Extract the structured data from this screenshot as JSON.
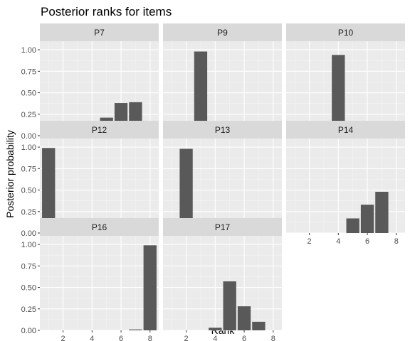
{
  "chart_data": {
    "type": "bar",
    "title": "Posterior ranks for items",
    "xlabel": "Rank",
    "ylabel": "Posterior probability",
    "ylim": [
      0,
      1.1
    ],
    "xlim": [
      0.4,
      8.6
    ],
    "x_ticks": [
      2,
      4,
      6,
      8
    ],
    "y_ticks": [
      0,
      0.25,
      0.5,
      0.75,
      1
    ],
    "y_tick_labels": [
      "0.00",
      "0.25",
      "0.50",
      "0.75",
      "1.00"
    ],
    "x_tick_labels": [
      "2",
      "4",
      "6",
      "8"
    ],
    "grid": true,
    "bar_color": "#595959",
    "panel_background": "#ebebeb",
    "strip_background": "#d9d9d9",
    "ranks": [
      1,
      2,
      3,
      4,
      5,
      6,
      7,
      8
    ],
    "panels": [
      {
        "name": "P7",
        "values": [
          0,
          0,
          0,
          0.01,
          0.21,
          0.38,
          0.39,
          0.01
        ]
      },
      {
        "name": "P9",
        "values": [
          0,
          0.01,
          0.98,
          0.02,
          0,
          0,
          0,
          0
        ]
      },
      {
        "name": "P10",
        "values": [
          0,
          0,
          0.02,
          0.94,
          0.04,
          0,
          0,
          0
        ]
      },
      {
        "name": "P12",
        "values": [
          0.99,
          0.01,
          0,
          0,
          0,
          0,
          0,
          0
        ]
      },
      {
        "name": "P13",
        "values": [
          0.01,
          0.98,
          0,
          0,
          0,
          0,
          0,
          0
        ]
      },
      {
        "name": "P14",
        "values": [
          0,
          0,
          0,
          0,
          0.17,
          0.33,
          0.48,
          0
        ]
      },
      {
        "name": "P16",
        "values": [
          0,
          0,
          0,
          0,
          0,
          0,
          0.01,
          0.99
        ]
      },
      {
        "name": "P17",
        "values": [
          0,
          0,
          0,
          0.03,
          0.57,
          0.28,
          0.1,
          0
        ]
      }
    ]
  }
}
